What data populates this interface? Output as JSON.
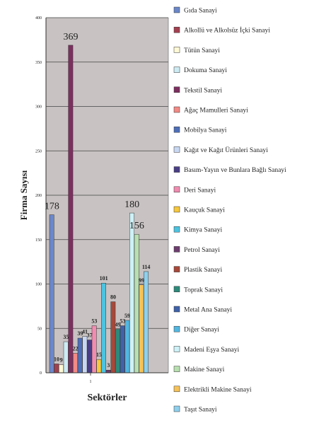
{
  "chart_data": {
    "type": "bar",
    "xlabel": "Sektörler",
    "ylabel": "Firma Sayısı",
    "ylim": [
      0,
      400
    ],
    "yticks": [
      0,
      50,
      100,
      150,
      200,
      250,
      300,
      350,
      400
    ],
    "categories": [
      "1"
    ],
    "grid": true,
    "legend_position": "right",
    "series": [
      {
        "name": "Gıda Sanayi",
        "value": 178,
        "color": "#6b87c9",
        "label": "178"
      },
      {
        "name": "Alkollü ve Alkolsüz İçki Sanayi",
        "value": 10,
        "color": "#a3404f",
        "label": "10"
      },
      {
        "name": "Tütün Sanayi",
        "value": 9,
        "color": "#fff9d6",
        "label": "9"
      },
      {
        "name": "Dokuma Sanayi",
        "value": 35,
        "color": "#cdebf2",
        "label": "35"
      },
      {
        "name": "Tekstil Sanayi",
        "value": 369,
        "color": "#7d2f5f",
        "label": "369"
      },
      {
        "name": "Ağaç Mamulleri Sanayi",
        "value": 22,
        "color": "#f28a85",
        "label": "22"
      },
      {
        "name": "Mobilya Sanayi",
        "value": 39,
        "color": "#4e6fb8",
        "label": "39"
      },
      {
        "name": "Kağıt ve Kağıt Ürünleri Sanayi",
        "value": 41,
        "color": "#c9d8f2",
        "label": "41"
      },
      {
        "name": "Basım-Yayın ve Bunlara Bağlı Sanayi",
        "value": 37,
        "color": "#4a3f86",
        "label": "37"
      },
      {
        "name": "Deri Sanayi",
        "value": 53,
        "color": "#f08cb0",
        "label": "53"
      },
      {
        "name": "Kauçuk Sanayi",
        "value": 15,
        "color": "#f6c83d",
        "label": "15"
      },
      {
        "name": "Kimya Sanayi",
        "value": 101,
        "color": "#4cc3e0",
        "label": "101"
      },
      {
        "name": "Petrol Sanayi",
        "value": 3,
        "color": "#6e3d6f",
        "label": "3"
      },
      {
        "name": "Plastik Sanayi",
        "value": 80,
        "color": "#a7483a",
        "label": "80"
      },
      {
        "name": "Toprak Sanayi",
        "value": 49,
        "color": "#2e8a7a",
        "label": "49"
      },
      {
        "name": "Metal Ana Sanayi",
        "value": 53,
        "color": "#3f62a9",
        "label": "53"
      },
      {
        "name": "Diğer Sanayi",
        "value": 59,
        "color": "#52b7e0",
        "label": "59"
      },
      {
        "name": "Madeni Eşya Sanayi",
        "value": 180,
        "color": "#cdf1f6",
        "label": "180"
      },
      {
        "name": "Makine Sanayi",
        "value": 156,
        "color": "#b8dfb0",
        "label": "156"
      },
      {
        "name": "Elektrikli Makine Sanayi",
        "value": 99,
        "color": "#f5c25a",
        "label": "99"
      },
      {
        "name": "Taşıt Sanayi",
        "value": 114,
        "color": "#8fd0ec",
        "label": "114"
      }
    ]
  }
}
